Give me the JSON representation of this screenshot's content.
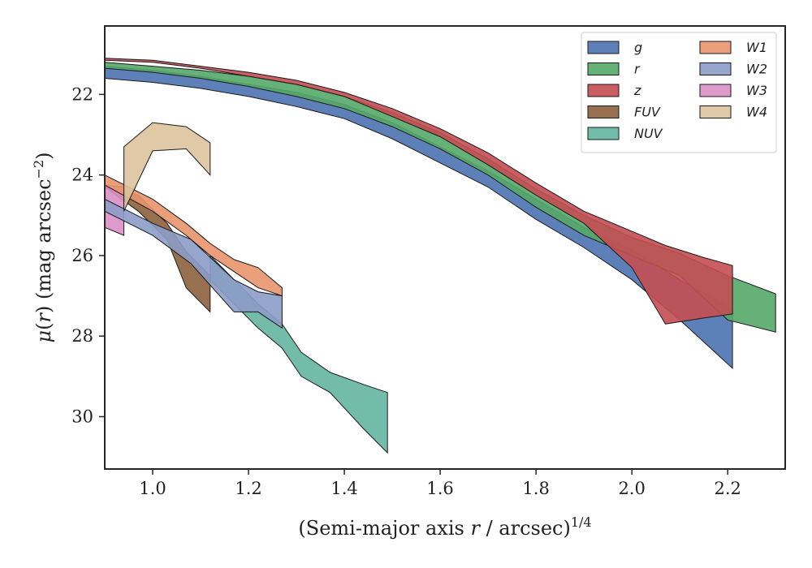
{
  "chart_data": {
    "type": "area",
    "xlabel": "(Semi-major axis r / arcsec)^1/4",
    "ylabel": "μ(r) (mag arcsec^−2)",
    "xlim": [
      0.9,
      2.32
    ],
    "ylim": [
      31.3,
      20.3
    ],
    "y_inverted": true,
    "grid": false,
    "legend_position": "top-right",
    "legend_columns": 2,
    "x_ticks": [
      1.0,
      1.2,
      1.4,
      1.6,
      1.8,
      2.0,
      2.2
    ],
    "x_tick_labels": [
      "1.0",
      "1.2",
      "1.4",
      "1.6",
      "1.8",
      "2.0",
      "2.2"
    ],
    "y_ticks": [
      22,
      24,
      26,
      28,
      30
    ],
    "y_tick_labels": [
      "22",
      "24",
      "26",
      "28",
      "30"
    ],
    "series": [
      {
        "name": "g",
        "color": "#4c72b0",
        "x": [
          0.9,
          1.0,
          1.1,
          1.2,
          1.3,
          1.4,
          1.5,
          1.6,
          1.7,
          1.8,
          1.9,
          2.0,
          2.1,
          2.21
        ],
        "y_upper": [
          21.3,
          21.4,
          21.55,
          21.75,
          21.95,
          22.25,
          22.7,
          23.3,
          23.9,
          24.6,
          25.3,
          25.85,
          26.6,
          27.3
        ],
        "y_lower": [
          21.6,
          21.7,
          21.85,
          22.05,
          22.3,
          22.6,
          23.1,
          23.7,
          24.3,
          25.1,
          25.8,
          26.6,
          27.6,
          28.8
        ]
      },
      {
        "name": "r",
        "color": "#55a868",
        "x": [
          0.9,
          1.0,
          1.1,
          1.2,
          1.3,
          1.4,
          1.5,
          1.6,
          1.7,
          1.8,
          1.9,
          2.0,
          2.1,
          2.2,
          2.3
        ],
        "y_upper": [
          21.2,
          21.3,
          21.4,
          21.55,
          21.75,
          22.05,
          22.45,
          22.95,
          23.6,
          24.35,
          25.0,
          25.55,
          25.95,
          26.5,
          26.95
        ],
        "y_lower": [
          21.35,
          21.45,
          21.6,
          21.8,
          22.05,
          22.35,
          22.8,
          23.35,
          24.0,
          24.8,
          25.5,
          26.0,
          26.5,
          27.6,
          27.9
        ]
      },
      {
        "name": "z",
        "color": "#c44e52",
        "x": [
          0.9,
          1.0,
          1.1,
          1.2,
          1.3,
          1.4,
          1.5,
          1.6,
          1.7,
          1.8,
          1.9,
          2.0,
          2.07,
          2.15,
          2.21
        ],
        "y_upper": [
          21.1,
          21.15,
          21.3,
          21.45,
          21.65,
          21.95,
          22.35,
          22.85,
          23.45,
          24.2,
          24.9,
          25.4,
          25.75,
          26.05,
          26.25
        ],
        "y_lower": [
          21.15,
          21.2,
          21.35,
          21.55,
          21.75,
          22.05,
          22.55,
          23.05,
          23.75,
          24.5,
          25.2,
          26.3,
          27.7,
          27.55,
          27.45
        ]
      },
      {
        "name": "FUV",
        "color": "#8c613c",
        "x": [
          0.9,
          0.97,
          1.03,
          1.07,
          1.12
        ],
        "y_upper": [
          24.3,
          24.5,
          25.2,
          25.9,
          26.5
        ],
        "y_lower": [
          24.3,
          24.9,
          25.6,
          26.8,
          27.4
        ]
      },
      {
        "name": "NUV",
        "color": "#64b5a0",
        "x": [
          1.12,
          1.17,
          1.22,
          1.27,
          1.31,
          1.37,
          1.44,
          1.49
        ],
        "y_upper": [
          26.0,
          26.6,
          27.2,
          27.7,
          28.4,
          28.9,
          29.2,
          29.4
        ],
        "y_lower": [
          26.6,
          27.2,
          27.8,
          28.3,
          29.0,
          29.4,
          30.3,
          30.9
        ]
      },
      {
        "name": "W1",
        "color": "#e8956c",
        "x": [
          0.9,
          1.0,
          1.07,
          1.12,
          1.17,
          1.22,
          1.27
        ],
        "y_upper": [
          24.0,
          24.6,
          25.2,
          25.7,
          26.1,
          26.3,
          26.8
        ],
        "y_lower": [
          24.25,
          24.9,
          25.5,
          26.0,
          26.4,
          26.8,
          27.0
        ]
      },
      {
        "name": "W2",
        "color": "#8c9cc6",
        "x": [
          0.9,
          1.0,
          1.08,
          1.17,
          1.22,
          1.27
        ],
        "y_upper": [
          24.6,
          25.2,
          25.6,
          26.6,
          26.9,
          27.0
        ],
        "y_lower": [
          24.9,
          25.5,
          26.2,
          27.4,
          27.4,
          27.8
        ]
      },
      {
        "name": "W3",
        "color": "#dc8fc6",
        "x": [
          0.9,
          0.94
        ],
        "y_upper": [
          24.25,
          24.3
        ],
        "y_lower": [
          25.3,
          25.5
        ]
      },
      {
        "name": "W4",
        "color": "#dcc39c",
        "x": [
          0.94,
          1.0,
          1.07,
          1.12
        ],
        "y_upper": [
          23.3,
          22.7,
          22.8,
          23.2
        ],
        "y_lower": [
          24.9,
          23.4,
          23.35,
          24.0
        ]
      }
    ]
  }
}
